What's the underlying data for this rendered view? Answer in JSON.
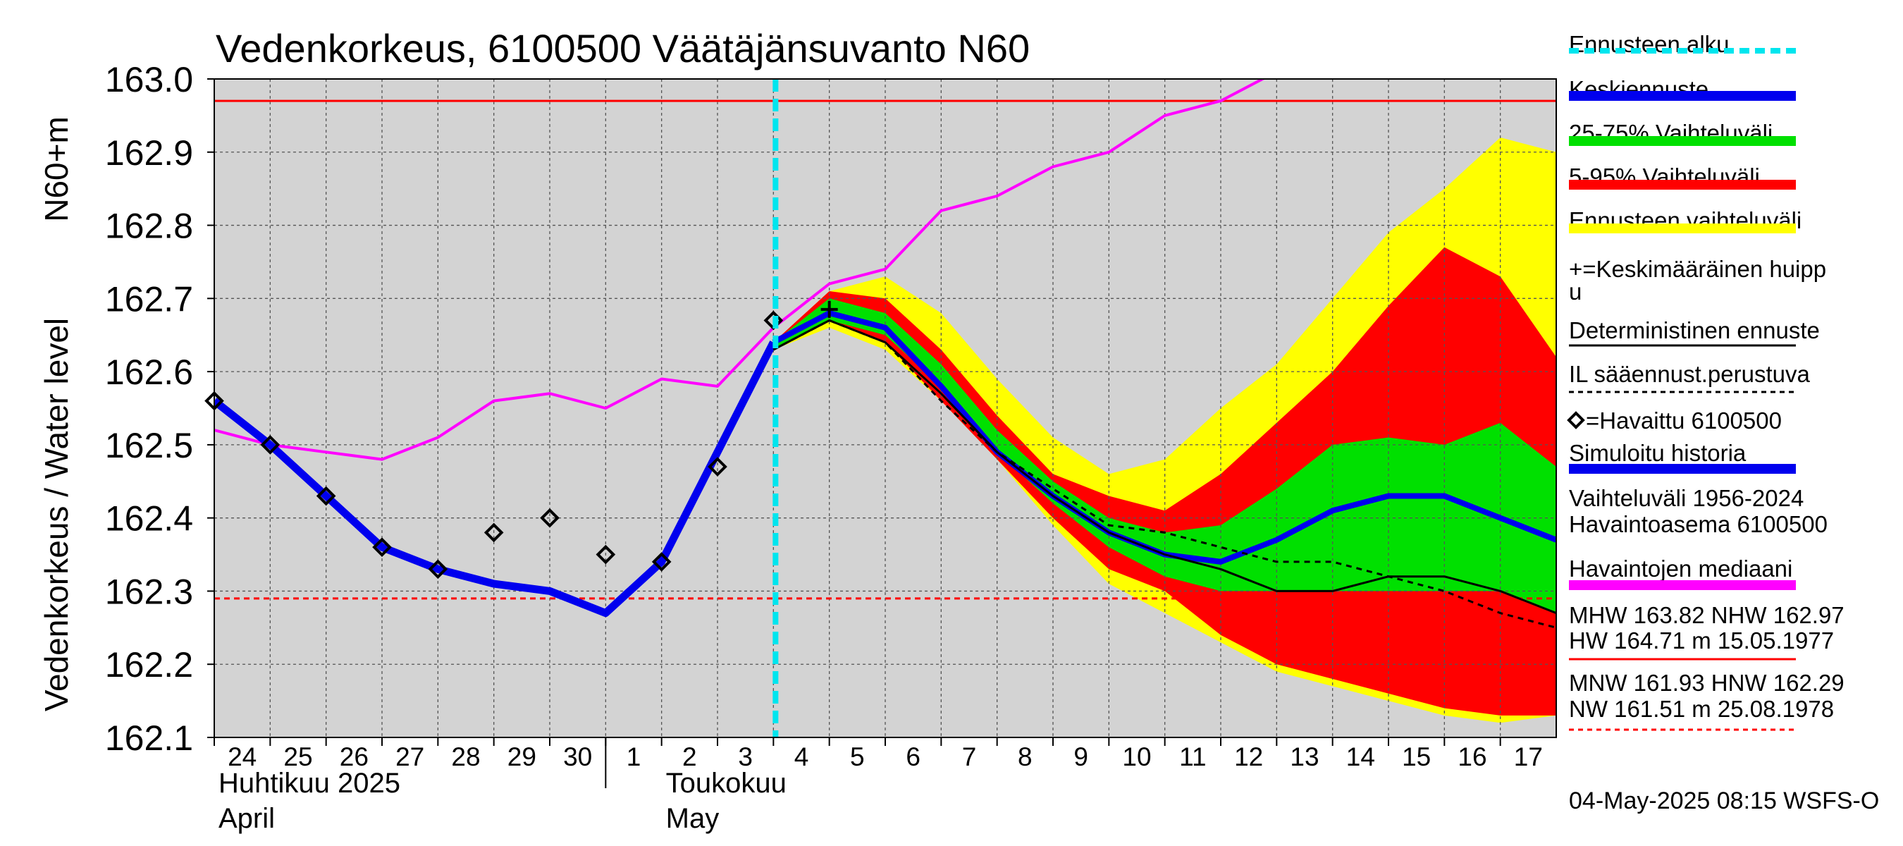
{
  "chart_data": {
    "type": "line",
    "title": "Vedenkorkeus, 6100500 Väätäjänsuvanto N60",
    "ylabel_lines": [
      "Vedenkorkeus / Water level",
      "N60+m"
    ],
    "ylim": [
      162.1,
      163.0
    ],
    "yticks": [
      "162.1",
      "162.2",
      "162.3",
      "162.4",
      "162.5",
      "162.6",
      "162.7",
      "162.8",
      "162.9",
      "163.0"
    ],
    "ytick_values": [
      162.1,
      162.2,
      162.3,
      162.4,
      162.5,
      162.6,
      162.7,
      162.8,
      162.9,
      163.0
    ],
    "x_day_labels": [
      "24",
      "25",
      "26",
      "27",
      "28",
      "29",
      "30",
      "1",
      "2",
      "3",
      "4",
      "5",
      "6",
      "7",
      "8",
      "9",
      "10",
      "11",
      "12",
      "13",
      "14",
      "15",
      "16",
      "17"
    ],
    "month_labels": [
      {
        "text": "Huhtikuu  2025",
        "day_index": 0,
        "line": 1
      },
      {
        "text": "April",
        "day_index": 0,
        "line": 2
      },
      {
        "text": "Toukokuu",
        "day_index": 8,
        "line": 1
      },
      {
        "text": "May",
        "day_index": 8,
        "line": 2
      }
    ],
    "x_range_days": [
      0,
      24
    ],
    "forecast_start_day": 10,
    "grid": true,
    "legend_position": "right",
    "thresholds": {
      "high": {
        "value": 162.97,
        "color": "#ff0000",
        "style": "solid"
      },
      "low": {
        "value": 162.29,
        "color": "#ff0000",
        "style": "dashed"
      }
    },
    "series": [
      {
        "name": "Ennusteen vaihteluväli",
        "kind": "band",
        "color": "#ffff00",
        "x": [
          10,
          11,
          12,
          13,
          14,
          15,
          16,
          17,
          18,
          19,
          20,
          21,
          22,
          23,
          24
        ],
        "lower": [
          162.63,
          162.66,
          162.63,
          162.56,
          162.48,
          162.39,
          162.31,
          162.27,
          162.23,
          162.19,
          162.17,
          162.15,
          162.13,
          162.12,
          162.13
        ],
        "upper": [
          162.64,
          162.71,
          162.73,
          162.68,
          162.59,
          162.51,
          162.46,
          162.48,
          162.55,
          162.61,
          162.7,
          162.79,
          162.85,
          162.92,
          162.9
        ]
      },
      {
        "name": "5-95% Vaihteluväli",
        "kind": "band",
        "color": "#ff0000",
        "x": [
          10,
          11,
          12,
          13,
          14,
          15,
          16,
          17,
          18,
          19,
          20,
          21,
          22,
          23,
          24
        ],
        "lower": [
          162.63,
          162.67,
          162.64,
          162.56,
          162.48,
          162.4,
          162.33,
          162.3,
          162.24,
          162.2,
          162.18,
          162.16,
          162.14,
          162.13,
          162.13
        ],
        "upper": [
          162.64,
          162.71,
          162.7,
          162.63,
          162.54,
          162.46,
          162.43,
          162.41,
          162.46,
          162.53,
          162.6,
          162.69,
          162.77,
          162.73,
          162.62
        ]
      },
      {
        "name": "25-75% Vaihteluväli",
        "kind": "band",
        "color": "#00e000",
        "x": [
          10,
          11,
          12,
          13,
          14,
          15,
          16,
          17,
          18,
          19,
          20,
          21,
          22,
          23,
          24
        ],
        "lower": [
          162.63,
          162.67,
          162.65,
          162.58,
          162.49,
          162.42,
          162.36,
          162.32,
          162.3,
          162.3,
          162.3,
          162.3,
          162.3,
          162.3,
          162.27
        ],
        "upper": [
          162.64,
          162.7,
          162.68,
          162.61,
          162.52,
          162.45,
          162.4,
          162.38,
          162.39,
          162.44,
          162.5,
          162.51,
          162.5,
          162.53,
          162.47
        ]
      },
      {
        "name": "Havaintojen mediaani",
        "kind": "line",
        "color": "#ff00ff",
        "x": [
          0,
          1,
          2,
          3,
          4,
          5,
          6,
          7,
          8,
          9,
          10,
          11,
          12,
          13,
          14,
          15,
          16,
          17,
          18,
          19
        ],
        "y": [
          162.52,
          162.5,
          162.49,
          162.48,
          162.51,
          162.56,
          162.57,
          162.55,
          162.59,
          162.58,
          162.66,
          162.72,
          162.74,
          162.82,
          162.84,
          162.88,
          162.9,
          162.95,
          162.97,
          163.01
        ]
      },
      {
        "name": "Simuloitu historia",
        "kind": "line",
        "color": "#0000ee",
        "x": [
          0,
          1,
          2,
          3,
          4,
          5,
          6,
          7,
          8,
          9,
          10
        ],
        "y": [
          162.56,
          162.5,
          162.43,
          162.36,
          162.33,
          162.31,
          162.3,
          162.27,
          162.34,
          162.49,
          162.64
        ]
      },
      {
        "name": "Keskiennuste",
        "kind": "line",
        "color": "#0000ee",
        "x": [
          10,
          11,
          12,
          13,
          14,
          15,
          16,
          17,
          18,
          19,
          20,
          21,
          22,
          23,
          24
        ],
        "y": [
          162.64,
          162.68,
          162.66,
          162.58,
          162.49,
          162.43,
          162.38,
          162.35,
          162.34,
          162.37,
          162.41,
          162.43,
          162.43,
          162.4,
          162.37
        ]
      },
      {
        "name": "Deterministinen ennuste",
        "kind": "line",
        "color": "#000000",
        "x": [
          10,
          11,
          12,
          13,
          14,
          15,
          16,
          17,
          18,
          19,
          20,
          21,
          22,
          23,
          24
        ],
        "y": [
          162.63,
          162.67,
          162.64,
          162.57,
          162.49,
          162.43,
          162.38,
          162.35,
          162.33,
          162.3,
          162.3,
          162.32,
          162.32,
          162.3,
          162.27
        ]
      },
      {
        "name": "IL sääennust.perustuva",
        "kind": "line",
        "color": "#000000",
        "dashed": true,
        "x": [
          10,
          11,
          12,
          13,
          14,
          15,
          16,
          17,
          18,
          19,
          20,
          21,
          22,
          23,
          24
        ],
        "y": [
          162.63,
          162.67,
          162.64,
          162.56,
          162.49,
          162.44,
          162.39,
          162.38,
          162.36,
          162.34,
          162.34,
          162.32,
          162.3,
          162.27,
          162.25
        ]
      },
      {
        "name": "Havaittu 6100500",
        "kind": "markers",
        "color": "#000000",
        "x": [
          0,
          1,
          2,
          3,
          4,
          5,
          6,
          7,
          8,
          9,
          10
        ],
        "y": [
          162.56,
          162.5,
          162.43,
          162.36,
          162.33,
          162.38,
          162.4,
          162.35,
          162.34,
          162.47,
          162.67
        ]
      },
      {
        "name": "Keskimääräinen huippu",
        "kind": "cross",
        "color": "#000000",
        "x": [
          11
        ],
        "y": [
          162.685
        ]
      }
    ]
  },
  "legend": {
    "items": [
      {
        "label": "Ennusteen alku",
        "color": "#00e5ee",
        "style": "dashed"
      },
      {
        "label": "Keskiennuste",
        "color": "#0000ee",
        "style": "solid"
      },
      {
        "label": "25-75% Vaihteluväli",
        "color": "#00e000",
        "style": "solid"
      },
      {
        "label": "5-95% Vaihteluväli",
        "color": "#ff0000",
        "style": "solid"
      },
      {
        "label": "Ennusteen vaihteluväli",
        "color": "#ffff00",
        "style": "solid"
      },
      {
        "label": "+=Keskimääräinen huipp",
        "label2": "u",
        "style": "none"
      },
      {
        "label": "Deterministinen ennuste",
        "color": "#000000",
        "style": "thin"
      },
      {
        "label": "IL sääennust.perustuva",
        "color": "#000000",
        "style": "dotted"
      },
      {
        "label": "=Havaittu 6100500",
        "style": "diamond"
      },
      {
        "label": "Simuloitu historia",
        "color": "#0000ee",
        "style": "solid"
      },
      {
        "label": "Vaihteluväli 1956-2024",
        "label2": " Havaintoasema 6100500",
        "style": "none"
      },
      {
        "label": "Havaintojen mediaani",
        "color": "#ff00ff",
        "style": "solid"
      },
      {
        "label": "MHW 163.82 NHW 162.97",
        "label2": "HW 164.71 m 15.05.1977",
        "color": "#ff0000",
        "style": "thin"
      },
      {
        "label": "MNW 161.93 HNW 162.29",
        "label2": "NW 161.51 m 25.08.1978",
        "color": "#ff0000",
        "style": "dotted"
      }
    ]
  },
  "footer": {
    "timestamp": "04-May-2025 08:15 WSFS-O"
  }
}
